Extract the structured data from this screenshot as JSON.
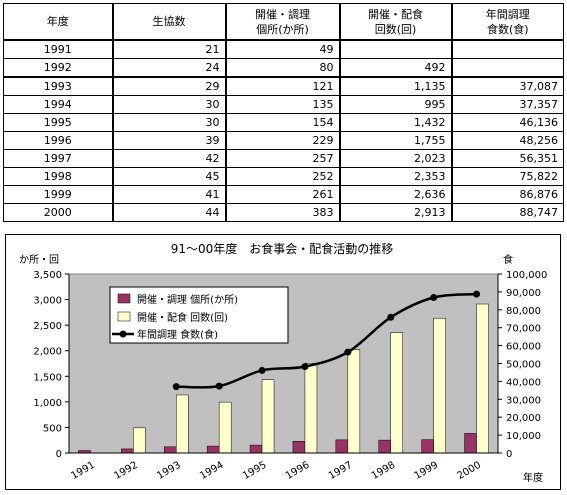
{
  "table": {
    "headers": {
      "year": "年度",
      "coops": "生協数",
      "sites_l1": "開催・調理",
      "sites_l2": "個所(か所)",
      "sessions_l1": "開催・配食",
      "sessions_l2": "回数(回)",
      "meals_l1": "年間調理",
      "meals_l2": "食数(食)"
    },
    "rows": [
      {
        "year": "1991",
        "coops": "21",
        "sites": "49",
        "sessions": "",
        "meals": ""
      },
      {
        "year": "1992",
        "coops": "24",
        "sites": "80",
        "sessions": "492",
        "meals": ""
      },
      {
        "year": "1993",
        "coops": "29",
        "sites": "121",
        "sessions": "1,135",
        "meals": "37,087"
      },
      {
        "year": "1994",
        "coops": "30",
        "sites": "135",
        "sessions": "995",
        "meals": "37,357"
      },
      {
        "year": "1995",
        "coops": "30",
        "sites": "154",
        "sessions": "1,432",
        "meals": "46,136"
      },
      {
        "year": "1996",
        "coops": "39",
        "sites": "229",
        "sessions": "1,755",
        "meals": "48,256"
      },
      {
        "year": "1997",
        "coops": "42",
        "sites": "257",
        "sessions": "2,023",
        "meals": "56,351"
      },
      {
        "year": "1998",
        "coops": "45",
        "sites": "252",
        "sessions": "2,353",
        "meals": "75,822"
      },
      {
        "year": "1999",
        "coops": "41",
        "sites": "261",
        "sessions": "2,636",
        "meals": "86,876"
      },
      {
        "year": "2000",
        "coops": "44",
        "sites": "383",
        "sessions": "2,913",
        "meals": "88,747"
      }
    ]
  },
  "chart_data": {
    "type": "bar",
    "title": "91～00年度　お食事会・配食活動の推移",
    "ylabel_left": "か所・回",
    "ylabel_right": "食",
    "xlabel": "年度",
    "categories": [
      "1991",
      "1992",
      "1993",
      "1994",
      "1995",
      "1996",
      "1997",
      "1998",
      "1999",
      "2000"
    ],
    "ylim_left": [
      0,
      3500
    ],
    "ylim_right": [
      0,
      100000
    ],
    "yticks_left": [
      "3,500",
      "3,000",
      "2,500",
      "2,000",
      "1,500",
      "1,000",
      "500",
      "0"
    ],
    "yticks_right": [
      "100,000",
      "90,000",
      "80,000",
      "70,000",
      "60,000",
      "50,000",
      "40,000",
      "30,000",
      "20,000",
      "10,000",
      "0"
    ],
    "legend_position": "top-left",
    "plot_background": "#c0c0c0",
    "series": [
      {
        "name": "開催・調理 個所(か所)",
        "kind": "bar",
        "axis": "left",
        "color": "#993366",
        "values": [
          49,
          80,
          121,
          135,
          154,
          229,
          257,
          252,
          261,
          383
        ]
      },
      {
        "name": "開催・配食 回数(回)",
        "kind": "bar",
        "axis": "left",
        "color": "#ffffcc",
        "values": [
          null,
          492,
          1135,
          995,
          1432,
          1755,
          2023,
          2353,
          2636,
          2913
        ]
      },
      {
        "name": "年間調理 食数(食)",
        "kind": "line",
        "axis": "right",
        "color": "#000000",
        "values": [
          null,
          null,
          37087,
          37357,
          46136,
          48256,
          56351,
          75822,
          86876,
          88747
        ]
      }
    ]
  }
}
